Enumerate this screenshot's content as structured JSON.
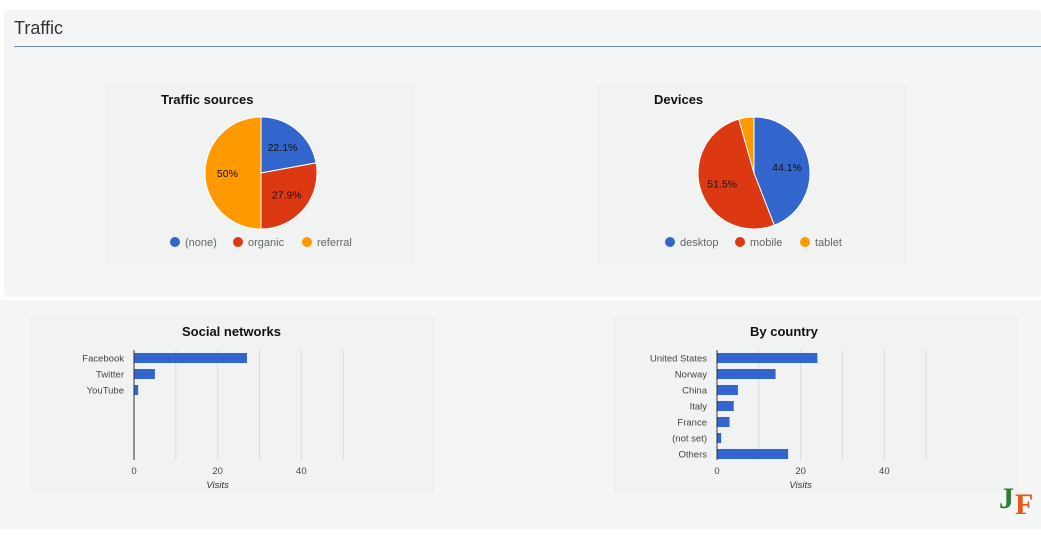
{
  "page": {
    "title": "Traffic"
  },
  "colors": {
    "blue": "#3366cc",
    "red": "#dc3912",
    "orange": "#ff9900",
    "rule": "#6d8bbf"
  },
  "logo": {
    "text": "JF"
  },
  "chart_data": [
    {
      "id": "traffic-sources",
      "type": "pie",
      "title": "Traffic sources",
      "labels": [
        "(none)",
        "organic",
        "referral"
      ],
      "values": [
        22.1,
        27.9,
        50.0
      ],
      "slice_labels": [
        "22.1%",
        "27.9%",
        "50%"
      ],
      "colors": [
        "#3366cc",
        "#dc3912",
        "#ff9900"
      ],
      "legend": "bottom"
    },
    {
      "id": "devices",
      "type": "pie",
      "title": "Devices",
      "labels": [
        "desktop",
        "mobile",
        "tablet"
      ],
      "values": [
        44.1,
        51.5,
        4.4
      ],
      "slice_labels": [
        "44.1%",
        "51.5%",
        ""
      ],
      "colors": [
        "#3366cc",
        "#dc3912",
        "#ff9900"
      ],
      "legend": "bottom"
    },
    {
      "id": "social-networks",
      "type": "bar",
      "orientation": "horizontal",
      "title": "Social networks",
      "categories": [
        "Facebook",
        "Twitter",
        "YouTube"
      ],
      "values": [
        27,
        5,
        1
      ],
      "xlabel": "Visits",
      "xlim": [
        0,
        60
      ],
      "xticks": [
        0,
        20,
        40
      ],
      "grid": true,
      "color": "#3366cc"
    },
    {
      "id": "by-country",
      "type": "bar",
      "orientation": "horizontal",
      "title": "By country",
      "categories": [
        "United States",
        "Norway",
        "China",
        "Italy",
        "France",
        "(not set)",
        "Others"
      ],
      "values": [
        24,
        14,
        5,
        4,
        3,
        1,
        17
      ],
      "xlabel": "Visits",
      "xlim": [
        0,
        60
      ],
      "xticks": [
        0,
        20,
        40
      ],
      "grid": true,
      "color": "#3366cc"
    }
  ]
}
